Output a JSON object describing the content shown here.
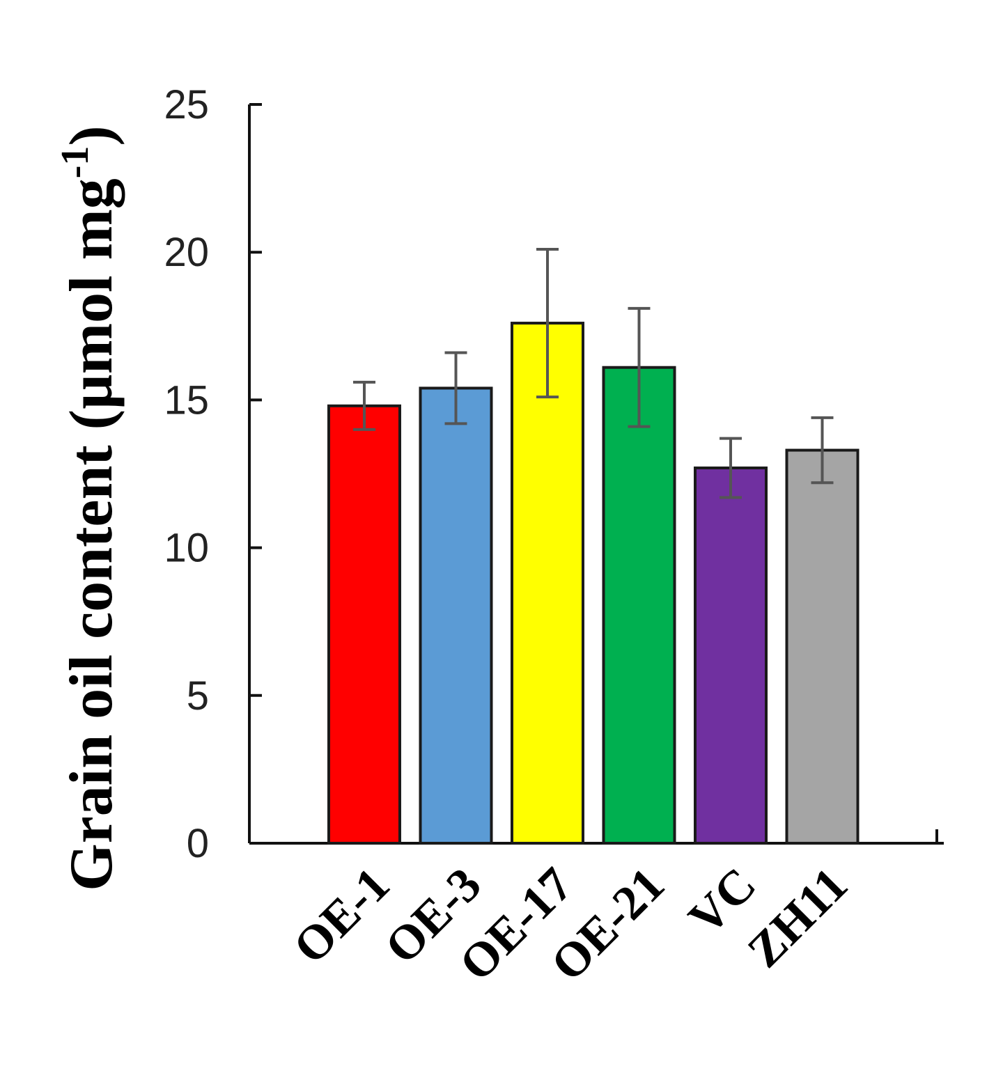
{
  "chart_data": {
    "type": "bar",
    "title": "",
    "xlabel": "",
    "ylabel": {
      "main": "Grain oil content (µmol mg",
      "sup": "-1",
      "close": ")"
    },
    "categories": [
      "OE-1",
      "OE-3",
      "OE-17",
      "OE-21",
      "VC",
      "ZH11"
    ],
    "values": [
      14.8,
      15.4,
      17.6,
      16.1,
      12.7,
      13.3
    ],
    "errors": [
      0.8,
      1.2,
      2.5,
      2.0,
      1.0,
      1.1
    ],
    "colors": [
      "#ff0000",
      "#5b9bd5",
      "#ffff00",
      "#00b050",
      "#7030a0",
      "#a5a5a5"
    ],
    "ylim": [
      0,
      25
    ],
    "yticks": [
      0,
      5,
      10,
      15,
      20,
      25
    ],
    "grid": false,
    "legend": "none"
  }
}
